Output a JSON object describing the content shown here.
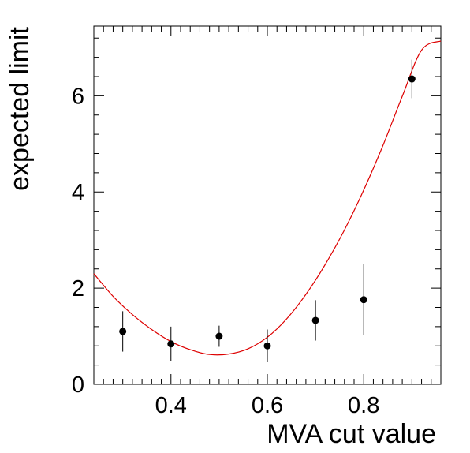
{
  "chart_data": {
    "type": "scatter",
    "title": "",
    "xlabel": "MVA cut value",
    "ylabel": "expected limit",
    "xlim": [
      0.24,
      0.96
    ],
    "ylim": [
      0,
      7.45
    ],
    "x_ticks": [
      0.4,
      0.6,
      0.8
    ],
    "x_tick_labels": [
      "0.4",
      "0.6",
      "0.8"
    ],
    "y_ticks": [
      0,
      2,
      4,
      6
    ],
    "y_tick_labels": [
      "0",
      "2",
      "4",
      "6"
    ],
    "grid": false,
    "legend": "none",
    "series": [
      {
        "kind": "points-with-errors",
        "color": "#000000",
        "x": [
          0.3,
          0.4,
          0.5,
          0.6,
          0.7,
          0.8,
          0.9
        ],
        "y": [
          1.1,
          0.84,
          1.0,
          0.8,
          1.33,
          1.76,
          6.35
        ],
        "y_err_low": [
          0.42,
          0.36,
          0.22,
          0.34,
          0.42,
          0.74,
          0.4
        ],
        "y_err_high": [
          0.42,
          0.36,
          0.22,
          0.34,
          0.42,
          0.74,
          0.4
        ]
      },
      {
        "kind": "fit-curve",
        "color": "#dd0000",
        "x": [
          0.24,
          0.28,
          0.32,
          0.36,
          0.4,
          0.44,
          0.48,
          0.52,
          0.56,
          0.6,
          0.64,
          0.68,
          0.72,
          0.76,
          0.8,
          0.84,
          0.88,
          0.92,
          0.96
        ],
        "y": [
          2.3,
          1.83,
          1.45,
          1.14,
          0.89,
          0.72,
          0.62,
          0.63,
          0.74,
          0.98,
          1.36,
          1.87,
          2.49,
          3.21,
          4.04,
          4.97,
          5.99,
          6.95,
          7.14
        ]
      }
    ]
  }
}
